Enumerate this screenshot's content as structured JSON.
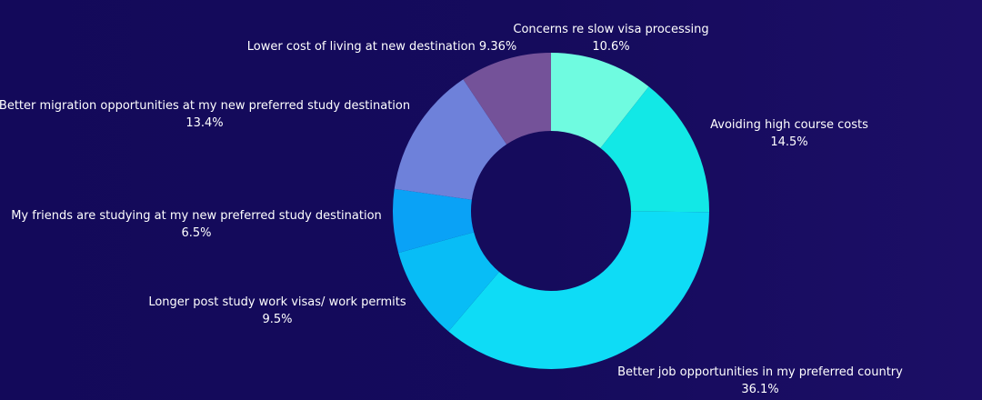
{
  "chart_data": {
    "type": "pie",
    "variant": "donut",
    "start_angle_deg": 0,
    "direction": "clockwise",
    "slices": [
      {
        "label": "Concerns re slow visa processing",
        "value": 10.6,
        "value_label": "10.6%",
        "color": "#6ffbe0"
      },
      {
        "label": "Avoiding high course costs",
        "value": 14.5,
        "value_label": "14.5%",
        "color": "#12e8e6"
      },
      {
        "label": "Better job opportunities in my preferred country",
        "value": 36.1,
        "value_label": "36.1%",
        "color": "#0edcf6"
      },
      {
        "label": "Longer post study work visas/ work permits",
        "value": 9.5,
        "value_label": "9.5%",
        "color": "#08bdf6"
      },
      {
        "label": "My friends are studying at my new preferred study destination",
        "value": 6.5,
        "value_label": "6.5%",
        "color": "#0aa2f6"
      },
      {
        "label": "Better migration opportunities at my new preferred study destination",
        "value": 13.4,
        "value_label": "13.4%",
        "color": "#6e81da"
      },
      {
        "label": "Lower cost of living at new destination 9.36%",
        "value": 9.36,
        "value_label": "",
        "color": "#745299"
      }
    ]
  }
}
